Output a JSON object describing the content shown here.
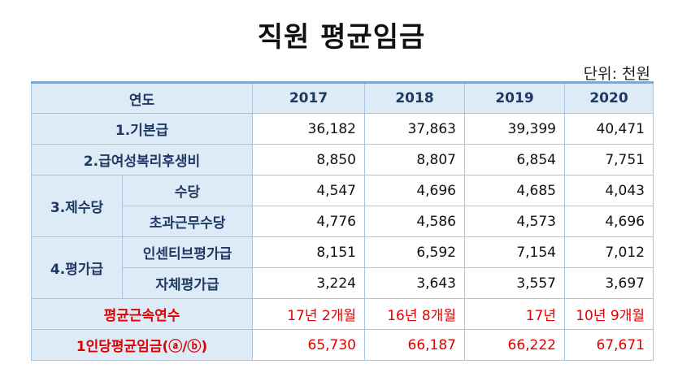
{
  "title": "직원 평균임금",
  "unit": "단위: 천원",
  "header": {
    "label": "연도",
    "years": [
      "2017",
      "2018",
      "2019",
      "2020"
    ]
  },
  "rows": {
    "basic": {
      "label": "1.기본급",
      "values": [
        "36,182",
        "37,863",
        "39,399",
        "40,471"
      ]
    },
    "welfare": {
      "label": "2.급여성복리후생비",
      "values": [
        "8,850",
        "8,807",
        "6,854",
        "7,751"
      ]
    },
    "allowance": {
      "group": "3.제수당",
      "sub1": {
        "label": "수당",
        "values": [
          "4,547",
          "4,696",
          "4,685",
          "4,043"
        ]
      },
      "sub2": {
        "label": "초과근무수당",
        "values": [
          "4,776",
          "4,586",
          "4,573",
          "4,696"
        ]
      }
    },
    "performance": {
      "group": "4.평가급",
      "sub1": {
        "label": "인센티브평가급",
        "values": [
          "8,151",
          "6,592",
          "7,154",
          "7,012"
        ]
      },
      "sub2": {
        "label": "자체평가급",
        "values": [
          "3,224",
          "3,643",
          "3,557",
          "3,697"
        ]
      }
    },
    "tenure": {
      "label": "평균근속연수",
      "values": [
        "17년 2개월",
        "16년 8개월",
        "17년",
        "10년 9개월"
      ]
    },
    "avg": {
      "label": "1인당평균임금(ⓐ/ⓑ)",
      "values": [
        "65,730",
        "66,187",
        "66,222",
        "67,671"
      ]
    }
  },
  "colors": {
    "header_bg": "#ddebf7",
    "header_text": "#1f3864",
    "border": "#a9c4e0",
    "highlight": "#e00000"
  }
}
